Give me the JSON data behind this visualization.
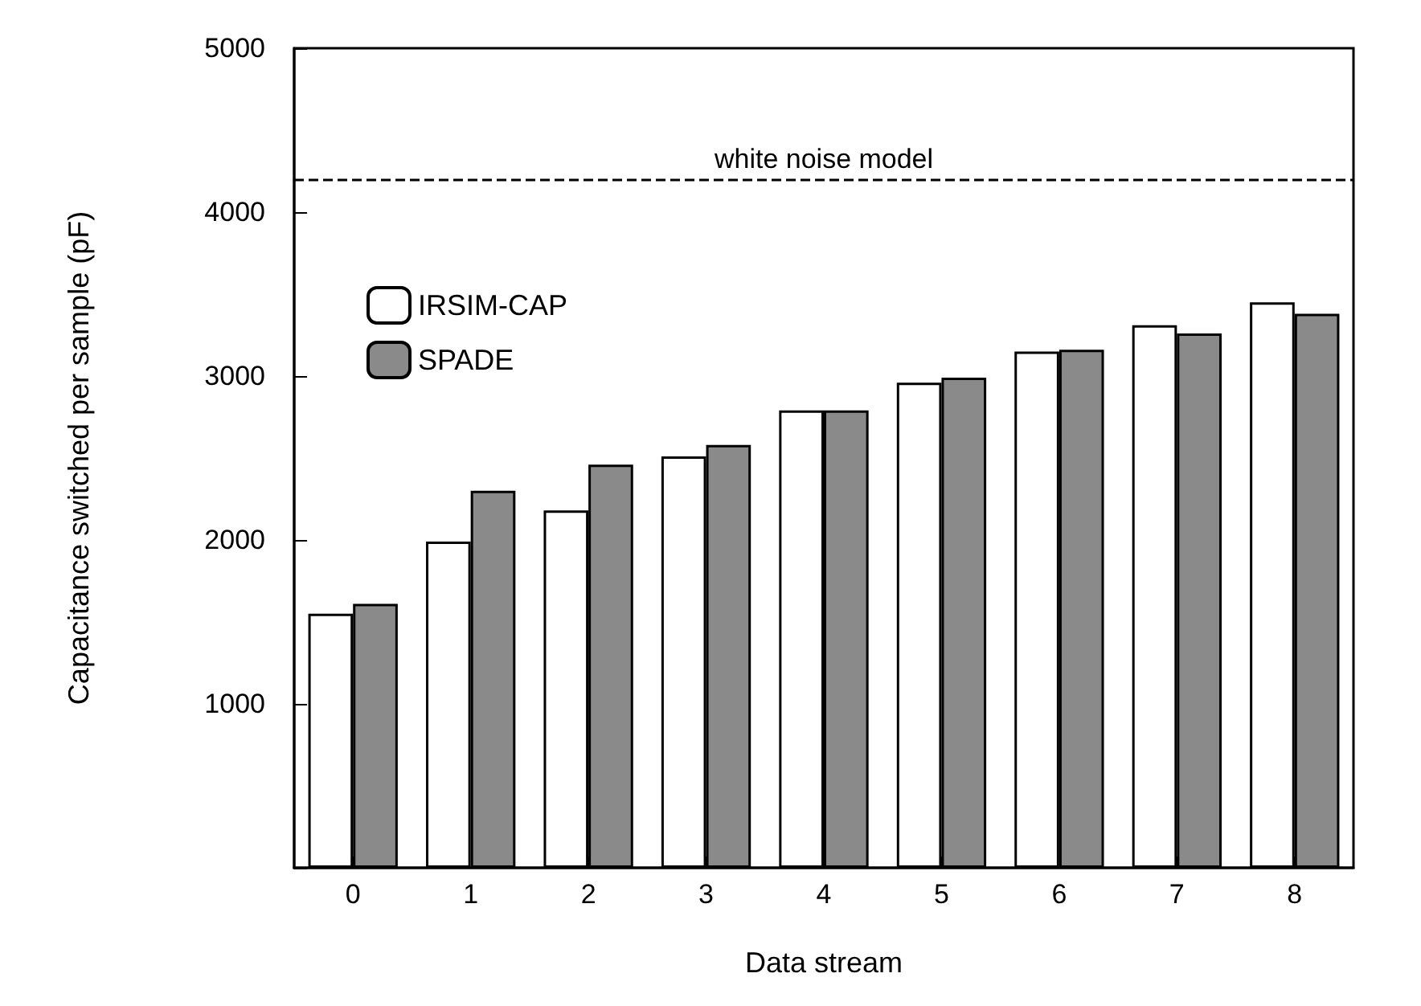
{
  "chart_data": {
    "type": "bar",
    "xlabel": "Data stream",
    "ylabel": "Capacitance switched per sample (pF)",
    "categories": [
      "0",
      "1",
      "2",
      "3",
      "4",
      "5",
      "6",
      "7",
      "8"
    ],
    "series": [
      {
        "name": "IRSIM-CAP",
        "color": "#ffffff",
        "values": [
          1550,
          1990,
          2180,
          2510,
          2790,
          2960,
          3150,
          3310,
          3450
        ]
      },
      {
        "name": "SPADE",
        "color": "#8a8a8a",
        "values": [
          1610,
          2300,
          2460,
          2580,
          2790,
          2990,
          3160,
          3260,
          3380
        ]
      }
    ],
    "ylim": [
      0,
      5000
    ],
    "yticks": [
      {
        "value": 0,
        "label": null
      },
      1000,
      2000,
      3000,
      4000,
      5000
    ],
    "ref_lines": [
      {
        "axis": "y",
        "value": 4200,
        "label": "white noise model",
        "line_style": "dashed",
        "color": "#000000"
      }
    ],
    "legend": "top left",
    "grid": false
  }
}
